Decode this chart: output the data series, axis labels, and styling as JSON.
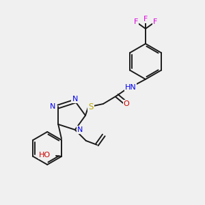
{
  "bg_color": "#f0f0f0",
  "bond_color": "#1a1a1a",
  "atom_colors": {
    "N": "#0000ee",
    "O": "#cc0000",
    "S": "#bbaa00",
    "F": "#dd00dd",
    "H": "#555555",
    "C": "#1a1a1a"
  },
  "font_size": 7.5,
  "figsize": [
    3.0,
    3.0
  ],
  "dpi": 100
}
